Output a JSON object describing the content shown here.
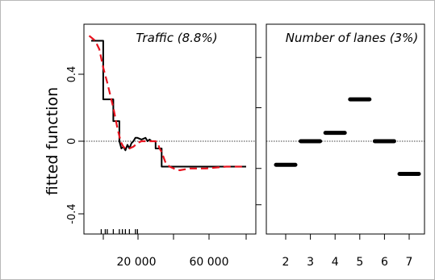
{
  "chart_data": [
    {
      "type": "line",
      "title": "Traffic (8.8%)",
      "ylabel": "fitted function",
      "xticks": [
        20000,
        60000
      ],
      "xtick_labels": [
        "20 000",
        "60 000"
      ],
      "xlim": [
        0,
        80000
      ],
      "yticks": [
        -0.4,
        0,
        0.4
      ],
      "ytick_labels": [
        "-0.4",
        "0",
        "0.4"
      ],
      "ylim": [
        -0.52,
        0.64
      ],
      "reference_line_y": 0,
      "series": [
        {
          "style": "solid-black",
          "x": [
            3000,
            9000,
            9000,
            11000,
            11000,
            14000,
            14000,
            17000,
            17000,
            18000,
            19000,
            20000,
            21000,
            22000,
            23000,
            24000,
            25000,
            26000,
            28000,
            30000,
            31000,
            32000,
            33000,
            35000,
            35000,
            38000,
            38000,
            80000
          ],
          "y": [
            0.6,
            0.6,
            0.25,
            0.25,
            0.25,
            0.25,
            0.12,
            0.12,
            0.0,
            -0.04,
            -0.03,
            -0.05,
            -0.02,
            -0.04,
            -0.01,
            0.0,
            0.02,
            0.02,
            0.01,
            0.02,
            0.0,
            0.01,
            0.0,
            0.0,
            -0.04,
            -0.04,
            -0.14,
            -0.14
          ]
        },
        {
          "style": "dashed-red",
          "x": [
            2000,
            5000,
            7000,
            9000,
            11000,
            12000,
            13000,
            14000,
            15000,
            16000,
            17000,
            18000,
            19000,
            20000,
            22000,
            24000,
            26000,
            28000,
            30000,
            32000,
            34000,
            35000,
            36000,
            37000,
            38000,
            39000,
            40000,
            42000,
            44000,
            47000,
            52000,
            60000,
            70000,
            80000
          ],
          "y": [
            0.63,
            0.6,
            0.55,
            0.44,
            0.35,
            0.3,
            0.25,
            0.2,
            0.14,
            0.08,
            0.03,
            -0.01,
            -0.03,
            -0.04,
            -0.04,
            -0.03,
            -0.01,
            0.0,
            0.0,
            0.0,
            0.0,
            0.0,
            -0.01,
            -0.04,
            -0.06,
            -0.09,
            -0.12,
            -0.14,
            -0.15,
            -0.16,
            -0.15,
            -0.15,
            -0.14,
            -0.14
          ]
        }
      ],
      "rug_x": [
        8000,
        10000,
        11000,
        14000,
        17000,
        18500,
        20000,
        22000,
        25000,
        26000
      ]
    },
    {
      "type": "bar",
      "title": "Number of lanes (3%)",
      "categories": [
        "2",
        "3",
        "4",
        "5",
        "6",
        "7"
      ],
      "values": [
        -0.13,
        0.0,
        0.05,
        0.25,
        0.0,
        -0.18
      ],
      "style": "horizontal-level-segments",
      "ylim": [
        -0.52,
        0.64
      ],
      "reference_line_y": 0
    }
  ]
}
